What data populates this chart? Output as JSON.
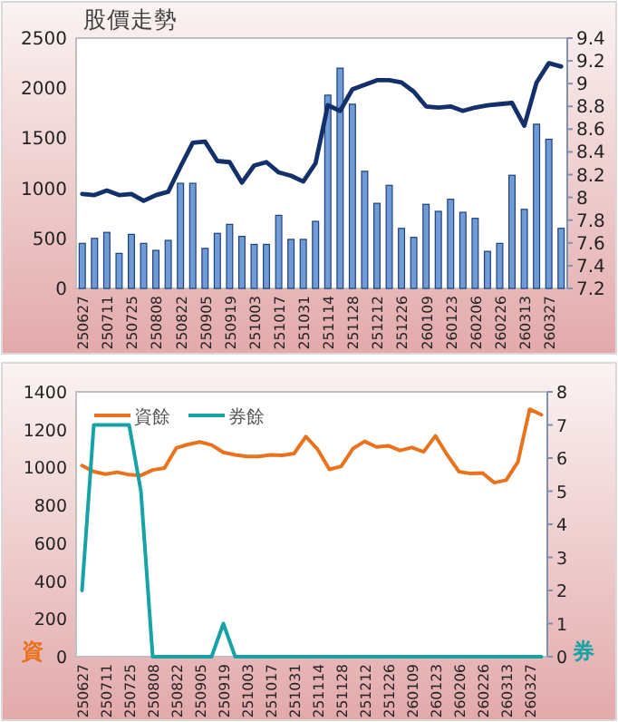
{
  "chart_data": [
    {
      "type": "bar",
      "title": "股價走勢",
      "categories": [
        "250627",
        null,
        "250711",
        null,
        "250725",
        null,
        "250808",
        null,
        "250822",
        null,
        "250905",
        null,
        "250919",
        null,
        "251003",
        null,
        "251017",
        null,
        "251031",
        null,
        "251114",
        null,
        "251128",
        null,
        "251212",
        null,
        "251226",
        null,
        "260109",
        null,
        "260123",
        null,
        "260206",
        null,
        "260226",
        null,
        "260313",
        null,
        "260327",
        null
      ],
      "series": [
        {
          "color": "#6f9bd6",
          "values": [
            450,
            500,
            560,
            350,
            540,
            450,
            380,
            480,
            1050,
            1050,
            400,
            550,
            640,
            520,
            440,
            440,
            730,
            490,
            490,
            670,
            1930,
            2200,
            1840,
            1170,
            850,
            1030,
            600,
            510,
            840,
            770,
            890,
            760,
            700,
            370,
            450,
            1130,
            790,
            1640,
            1490,
            600
          ]
        },
        {
          "type": "line",
          "axis": "y2",
          "color": "#13306b",
          "values": [
            8.03,
            8.02,
            8.06,
            8.02,
            8.03,
            7.97,
            8.02,
            8.05,
            8.27,
            8.48,
            8.49,
            8.32,
            8.31,
            8.13,
            8.28,
            8.31,
            8.22,
            8.19,
            8.14,
            8.3,
            8.81,
            8.76,
            8.95,
            8.99,
            9.03,
            9.03,
            9.01,
            8.93,
            8.8,
            8.79,
            8.8,
            8.76,
            8.79,
            8.81,
            8.82,
            8.83,
            8.63,
            9.01,
            9.18,
            9.15
          ]
        }
      ],
      "ylim": [
        0,
        2500
      ],
      "yticks": [
        0,
        500,
        1000,
        1500,
        2000,
        2500
      ],
      "y2lim": [
        7.2,
        9.4
      ],
      "y2ticks": [
        7.2,
        7.4,
        7.6,
        7.8,
        8,
        8.2,
        8.4,
        8.6,
        8.8,
        9,
        9.2,
        9.4
      ]
    },
    {
      "type": "line",
      "ylabel": "資",
      "y2label": "券",
      "legend": "top left",
      "categories": [
        "250627",
        null,
        "250711",
        null,
        "250725",
        null,
        "250808",
        null,
        "250822",
        null,
        "250905",
        null,
        "250919",
        null,
        "251003",
        null,
        "251017",
        null,
        "251031",
        null,
        "251114",
        null,
        "251128",
        null,
        "251212",
        null,
        "251226",
        null,
        "260109",
        null,
        "260123",
        null,
        "260206",
        null,
        "260226",
        null,
        "260313",
        null,
        "260327",
        null
      ],
      "series": [
        {
          "name": "資餘",
          "color": "#e9731d",
          "values": [
            1010,
            978,
            965,
            975,
            962,
            958,
            987,
            997,
            1103,
            1122,
            1135,
            1119,
            1080,
            1067,
            1058,
            1058,
            1067,
            1064,
            1074,
            1163,
            1096,
            990,
            1006,
            1100,
            1138,
            1109,
            1115,
            1090,
            1106,
            1083,
            1167,
            1067,
            978,
            968,
            971,
            920,
            933,
            1029,
            1308,
            1279
          ]
        },
        {
          "name": "券餘",
          "axis": "y2",
          "color": "#17a3a5",
          "values": [
            2,
            7,
            7,
            7,
            7,
            5,
            0,
            0,
            0,
            0,
            0,
            0,
            1,
            0,
            0,
            0,
            0,
            0,
            0,
            0,
            0,
            0,
            0,
            0,
            0,
            0,
            0,
            0,
            0,
            0,
            0,
            0,
            0,
            0,
            0,
            0,
            0,
            0,
            0,
            0
          ]
        }
      ],
      "ylim": [
        0,
        1400
      ],
      "yticks": [
        0,
        200,
        400,
        600,
        800,
        1000,
        1200,
        1400
      ],
      "y2lim": [
        0,
        8
      ],
      "y2ticks": [
        0,
        1,
        2,
        3,
        4,
        5,
        6,
        7,
        8
      ]
    }
  ]
}
